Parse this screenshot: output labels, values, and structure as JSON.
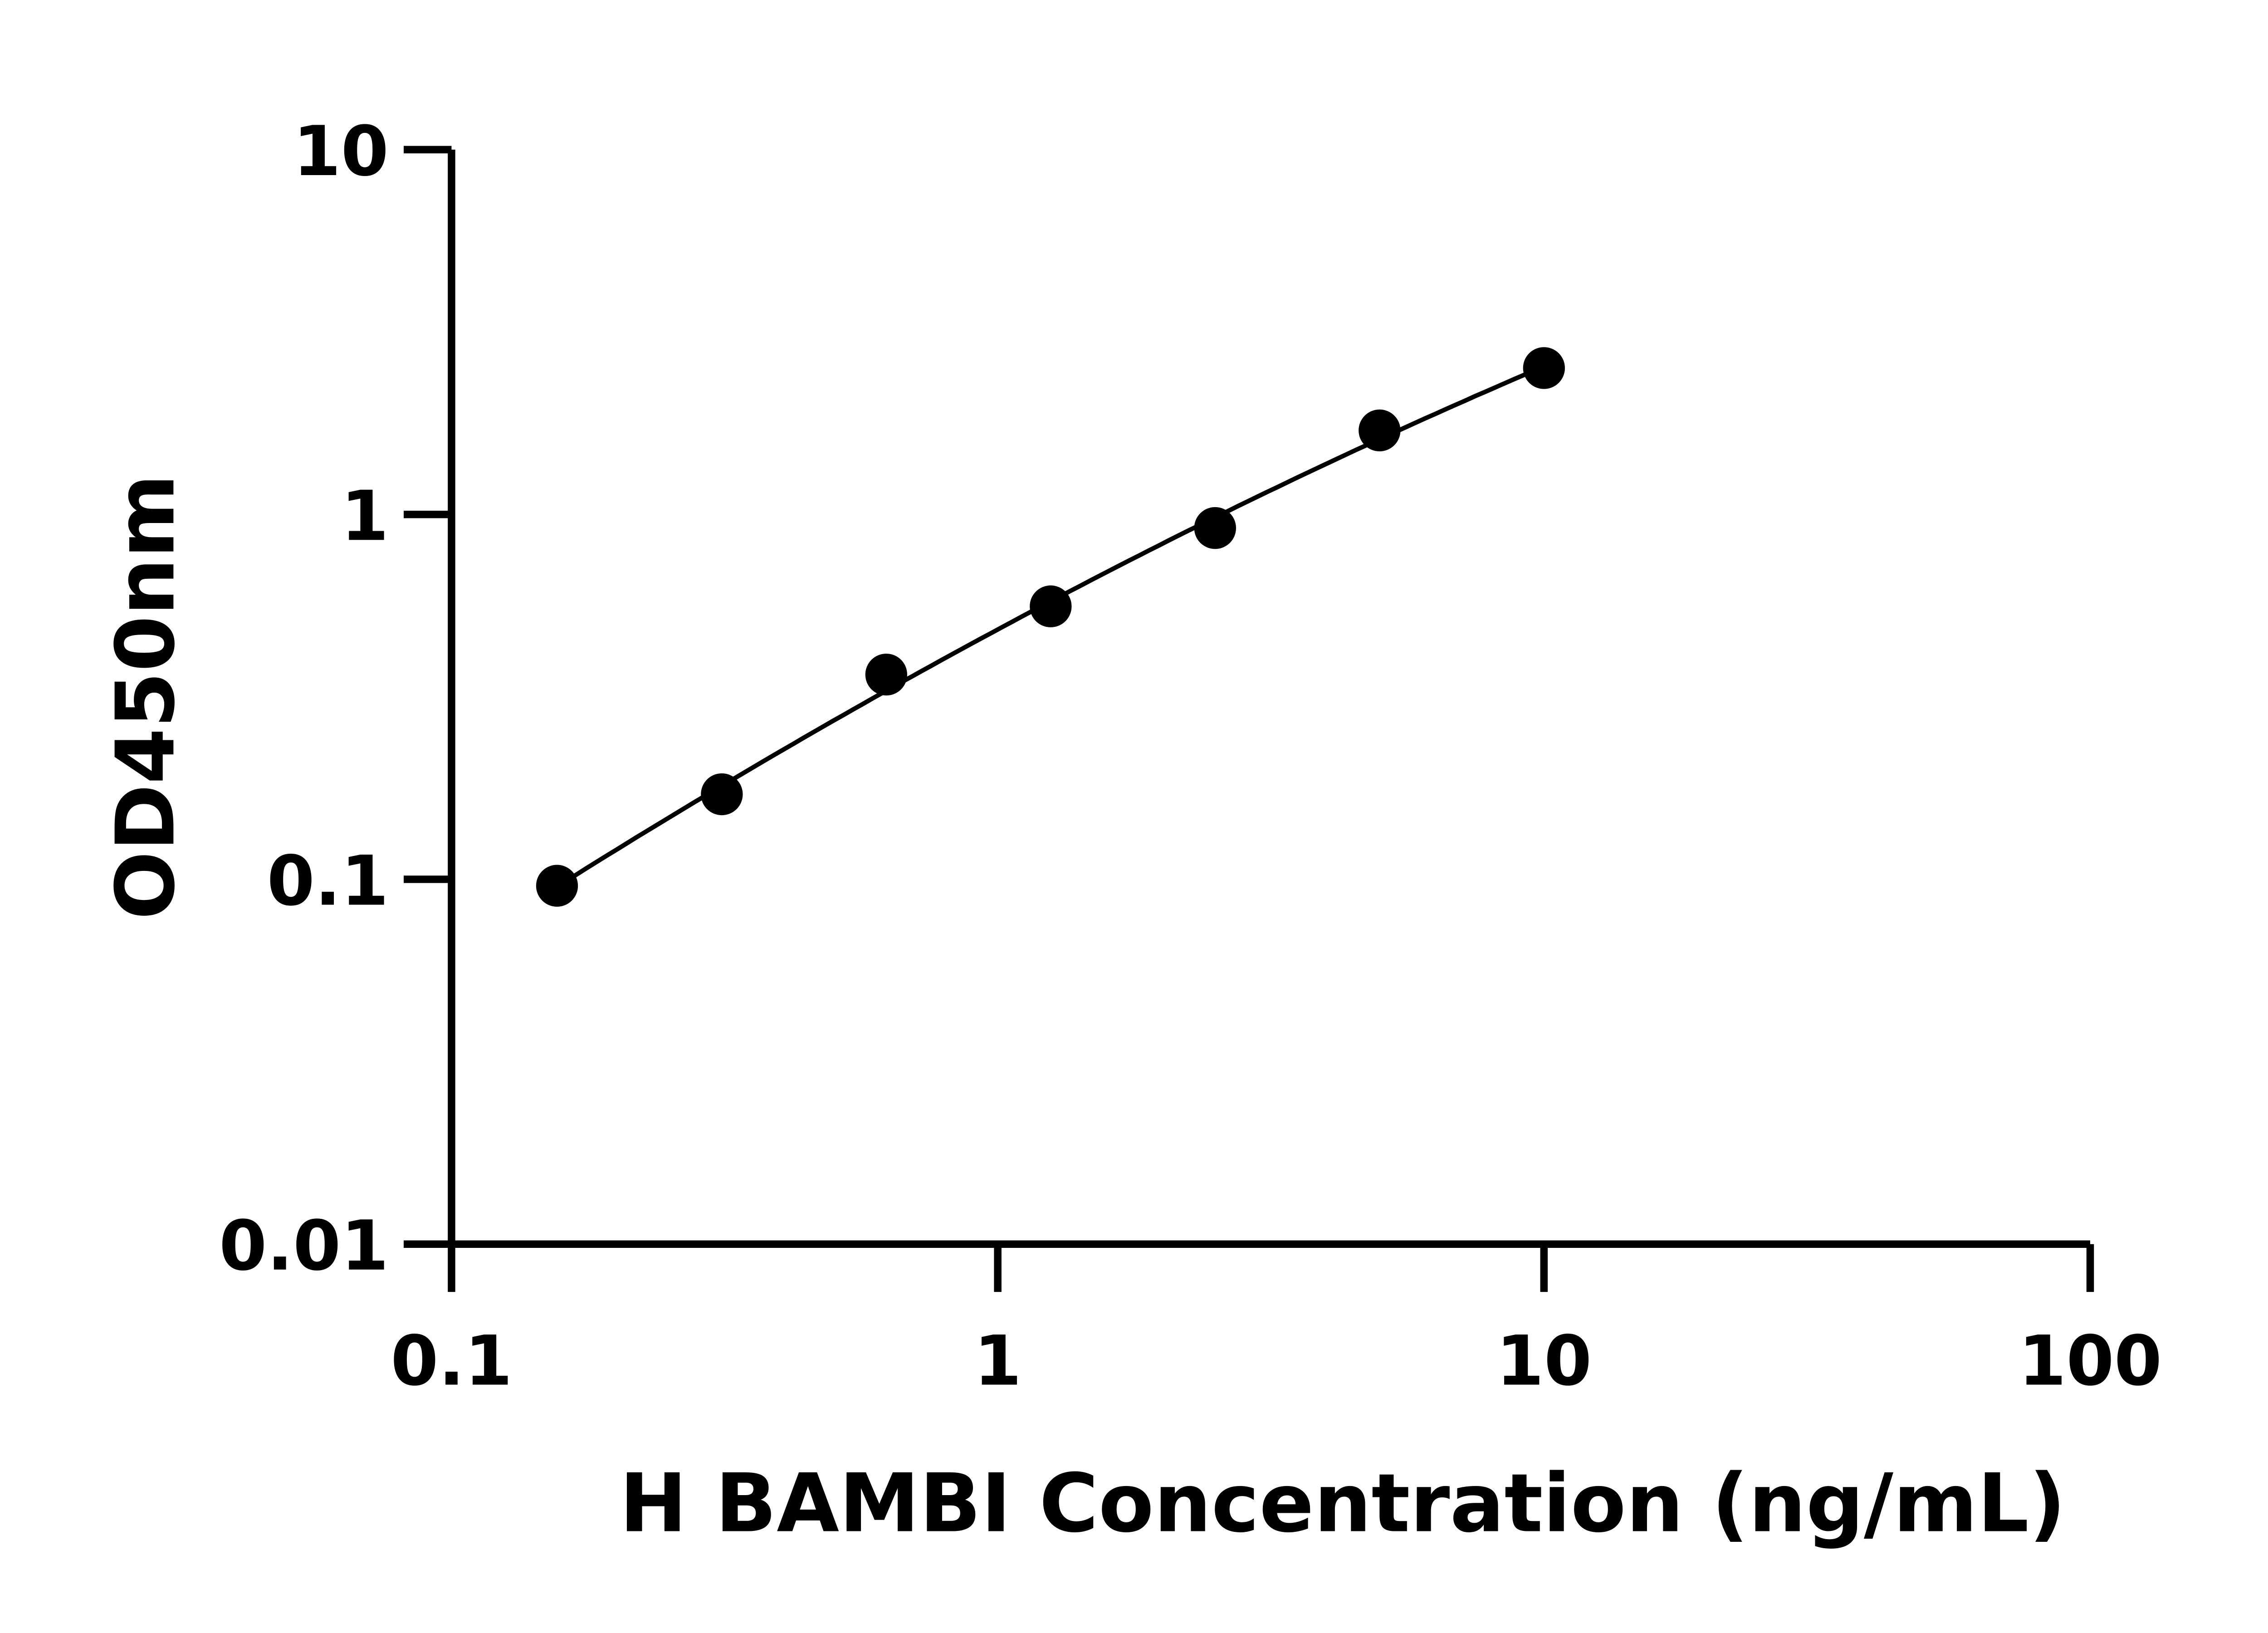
{
  "chart_data": {
    "type": "scatter",
    "title": "",
    "xlabel": "H BAMBI Concentration (ng/mL)",
    "ylabel": "OD450nm",
    "xscale": "log",
    "yscale": "log",
    "xlim": [
      0.1,
      100
    ],
    "ylim": [
      0.01,
      10
    ],
    "xticks": [
      "0.1",
      "1",
      "10",
      "100"
    ],
    "yticks": [
      "0.01",
      "0.1",
      "1",
      "10"
    ],
    "grid": false,
    "legend": "none",
    "marker_color": "#000000",
    "fit_curve": true,
    "x": [
      0.156,
      0.3125,
      0.625,
      1.25,
      2.5,
      5,
      10
    ],
    "y": [
      0.096,
      0.171,
      0.364,
      0.56,
      0.918,
      1.7,
      2.52
    ]
  }
}
